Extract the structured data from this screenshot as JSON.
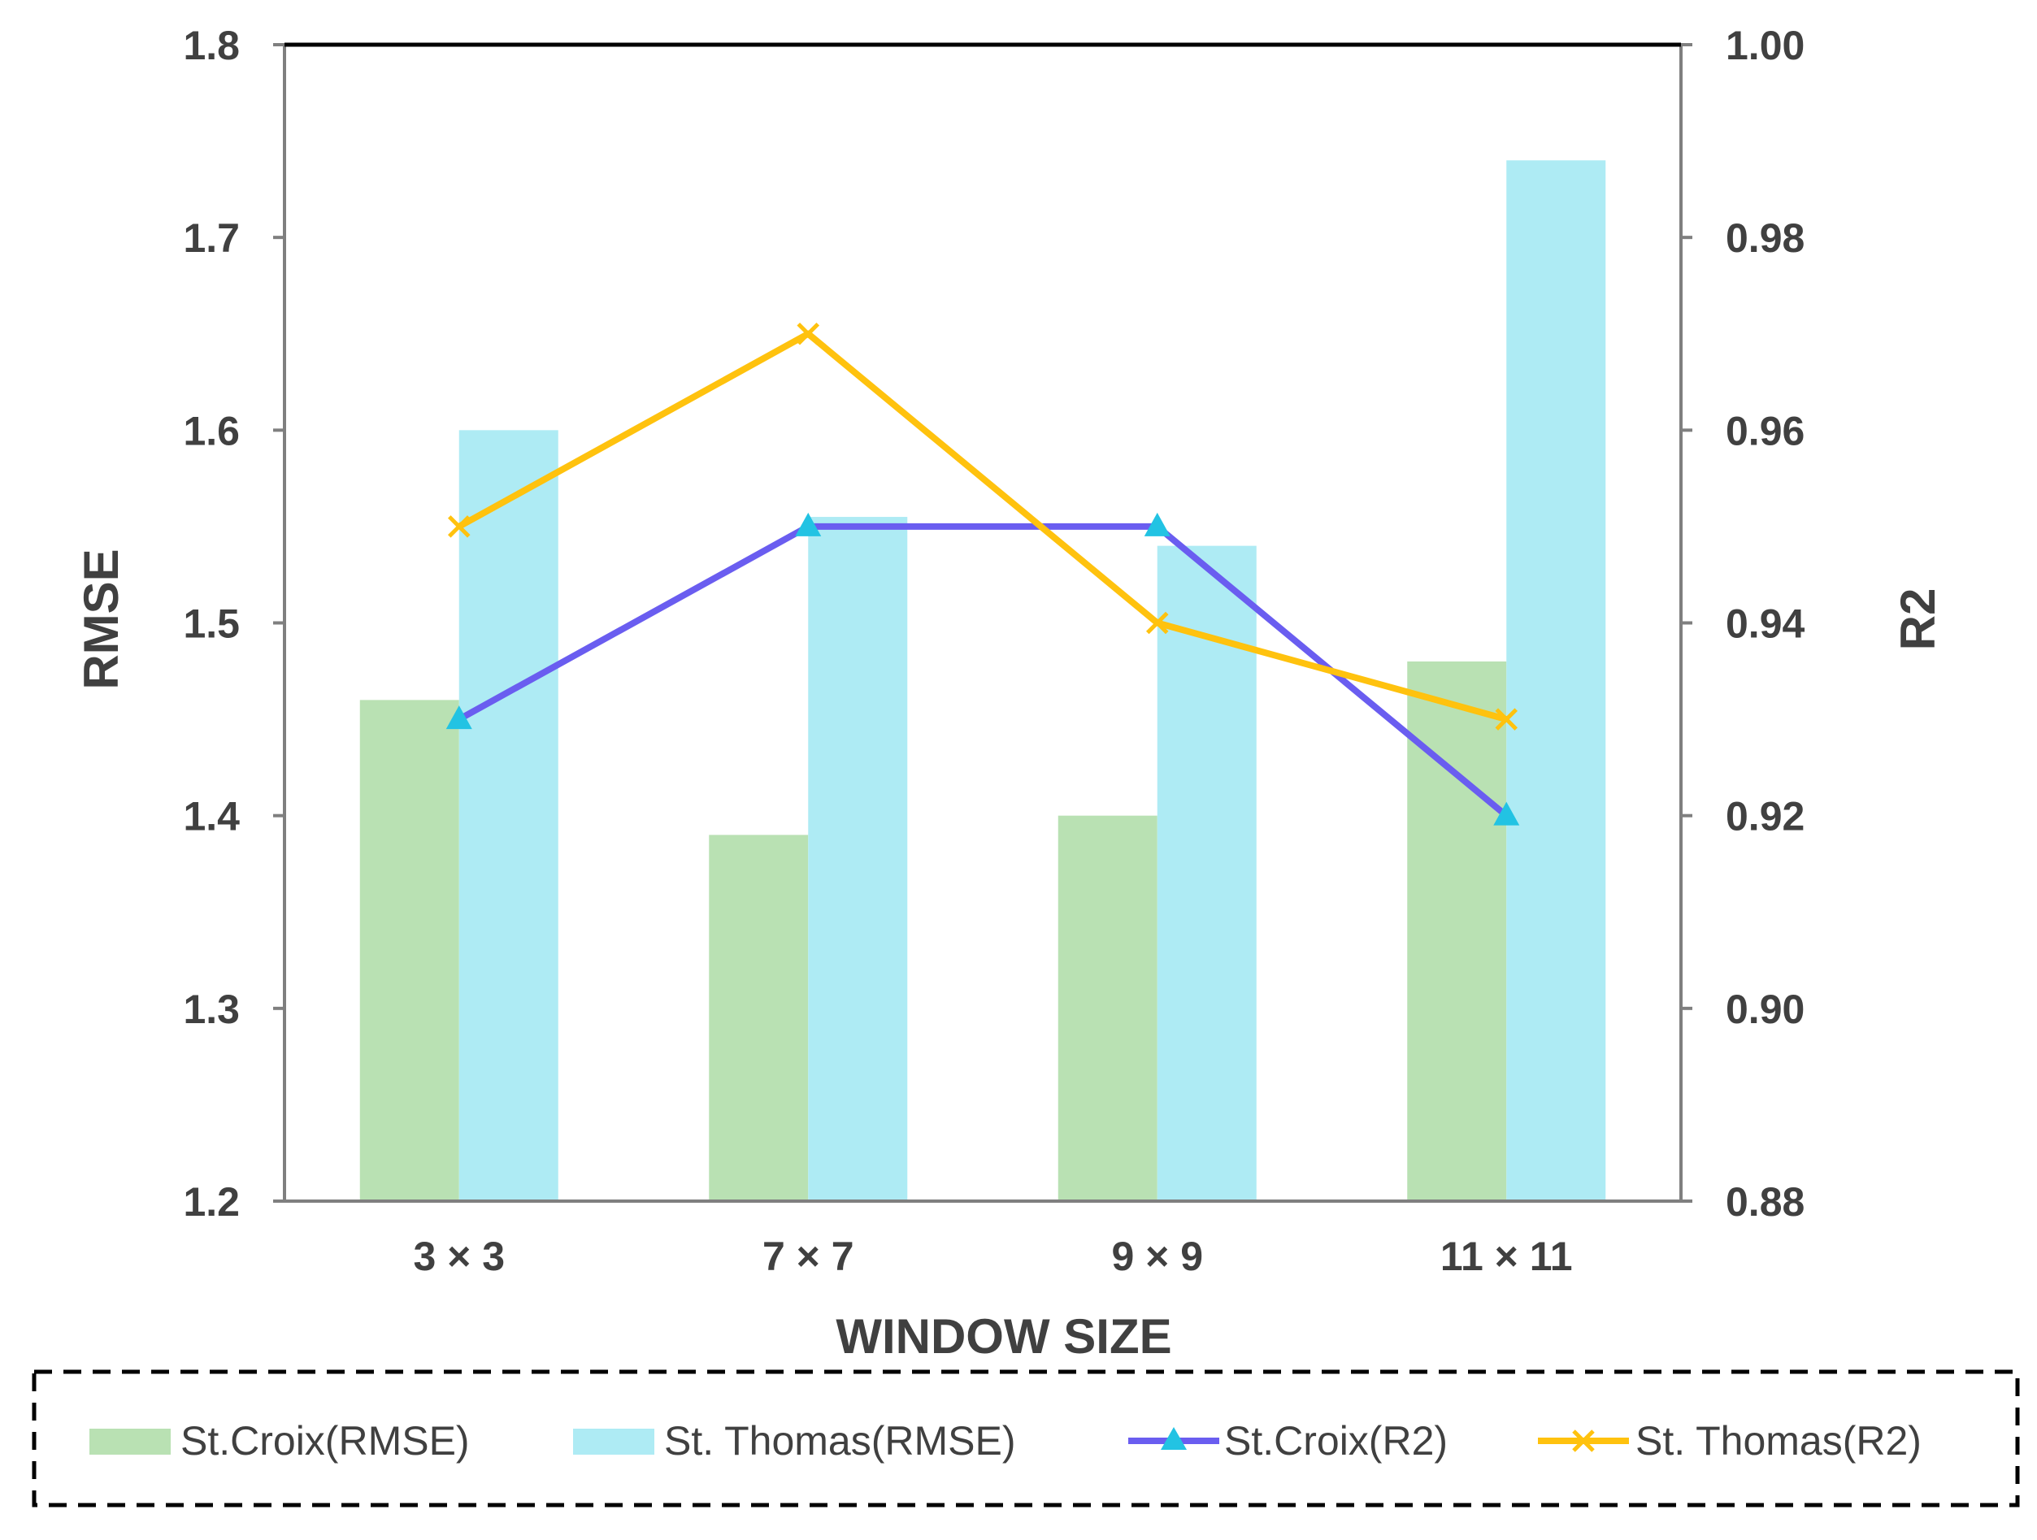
{
  "chart_data": {
    "type": "bar",
    "categories": [
      "3 × 3",
      "7 × 7",
      "9 × 9",
      "11 × 11"
    ],
    "xlabel": "WINDOW SIZE",
    "ylabel": "RMSE",
    "y2label": "R2",
    "ylim": [
      1.2,
      1.8
    ],
    "y2lim": [
      0.88,
      1.0
    ],
    "yticks": [
      "1.2",
      "1.3",
      "1.4",
      "1.5",
      "1.6",
      "1.7",
      "1.8"
    ],
    "y2ticks": [
      "0.88",
      "0.90",
      "0.92",
      "0.94",
      "0.96",
      "0.98",
      "1.00"
    ],
    "grid": false,
    "legend_position": "bottom",
    "series": [
      {
        "name": "St.Croix(RMSE)",
        "kind": "bar",
        "axis": "left",
        "color": "#b9e1b3",
        "values": [
          1.46,
          1.39,
          1.4,
          1.48
        ]
      },
      {
        "name": "St. Thomas(RMSE)",
        "kind": "bar",
        "axis": "left",
        "color": "#aeebf4",
        "values": [
          1.6,
          1.555,
          1.54,
          1.74
        ]
      },
      {
        "name": "St.Croix(R2)",
        "kind": "line",
        "marker": "triangle",
        "axis": "right",
        "color": "#6a5df0",
        "marker_color": "#22c3e3",
        "values": [
          0.93,
          0.95,
          0.95,
          0.92
        ]
      },
      {
        "name": "St. Thomas(R2)",
        "kind": "line",
        "marker": "x",
        "axis": "right",
        "color": "#ffc20e",
        "marker_color": "#ffc20e",
        "values": [
          0.95,
          0.97,
          0.94,
          0.93
        ]
      }
    ]
  }
}
